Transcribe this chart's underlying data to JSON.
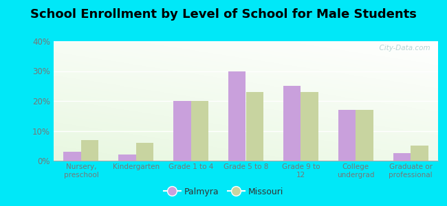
{
  "title": "School Enrollment by Level of School for Male Students",
  "categories": [
    "Nursery,\npreschool",
    "Kindergarten",
    "Grade 1 to 4",
    "Grade 5 to 8",
    "Grade 9 to\n12",
    "College\nundergrad",
    "Graduate or\nprofessional"
  ],
  "palmyra": [
    3,
    2,
    20,
    30,
    25,
    17,
    2.5
  ],
  "missouri": [
    7,
    6,
    20,
    23,
    23,
    17,
    5
  ],
  "palmyra_color": "#c9a0dc",
  "missouri_color": "#c8d4a0",
  "background_outer": "#00e8f8",
  "ylim": [
    0,
    40
  ],
  "yticks": [
    0,
    10,
    20,
    30,
    40
  ],
  "ytick_labels": [
    "0%",
    "10%",
    "20%",
    "30%",
    "40%"
  ],
  "bar_width": 0.32,
  "legend_labels": [
    "Palmyra",
    "Missouri"
  ],
  "watermark": "  City-Data.com",
  "tick_color": "#777777",
  "title_fontsize": 13
}
